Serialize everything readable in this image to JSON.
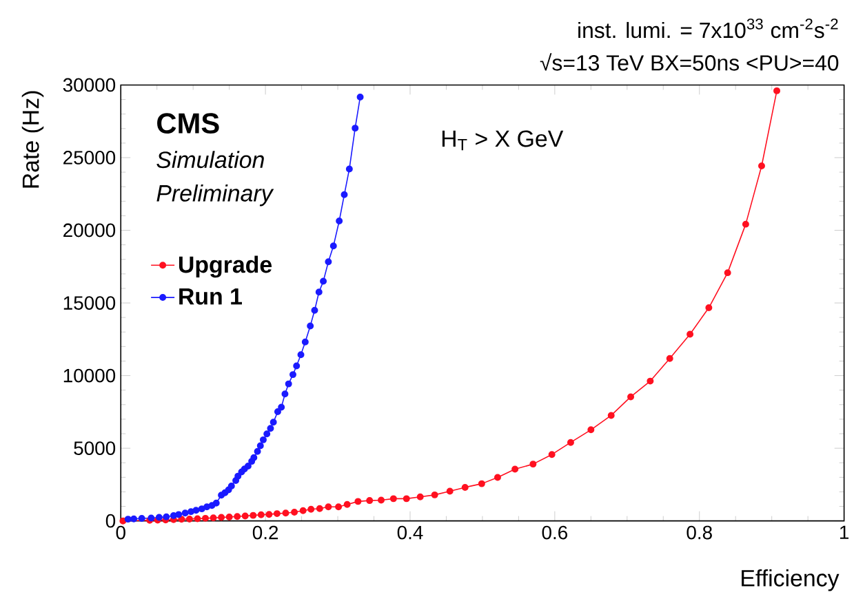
{
  "chart_data": {
    "type": "line",
    "title": "inst. lumi. = 7x10$^{33}$ cm$^{-2}$s$^{-2}$",
    "subtitle": "√s=13 TeV  BX=50ns  <PU>=40",
    "xlabel": "Efficiency",
    "ylabel": "Rate (Hz)",
    "annotations": [
      "CMS",
      "Simulation",
      "Preliminary",
      "H$_{T}$ > X GeV"
    ],
    "xlim": [
      0,
      1
    ],
    "ylim": [
      0,
      30000
    ],
    "xticks": [
      0,
      0.2,
      0.4,
      0.6,
      0.8,
      1
    ],
    "yticks": [
      0,
      5000,
      10000,
      15000,
      20000,
      25000,
      30000
    ],
    "grid": false,
    "legend": "left",
    "marker": "circle",
    "line_style": "solid",
    "series": [
      {
        "name": "Upgrade",
        "color": "#ff1020",
        "x": [
          0.003,
          0.01,
          0.02,
          0.03,
          0.04,
          0.051,
          0.062,
          0.073,
          0.084,
          0.095,
          0.106,
          0.117,
          0.128,
          0.139,
          0.15,
          0.161,
          0.172,
          0.183,
          0.194,
          0.205,
          0.216,
          0.228,
          0.24,
          0.252,
          0.263,
          0.275,
          0.287,
          0.301,
          0.313,
          0.328,
          0.344,
          0.36,
          0.377,
          0.395,
          0.414,
          0.434,
          0.455,
          0.476,
          0.499,
          0.521,
          0.545,
          0.57,
          0.596,
          0.622,
          0.65,
          0.678,
          0.705,
          0.732,
          0.759,
          0.787,
          0.813,
          0.839,
          0.864,
          0.886,
          0.907
        ],
        "values": [
          0,
          null,
          null,
          null,
          40,
          50,
          70,
          90,
          110,
          130,
          150,
          180,
          210,
          240,
          270,
          300,
          340,
          380,
          420,
          450,
          500,
          540,
          600,
          710,
          800,
          850,
          970,
          970,
          1130,
          1340,
          1400,
          1430,
          1530,
          1530,
          1650,
          1790,
          2040,
          2310,
          2560,
          2990,
          3560,
          3910,
          4570,
          5400,
          6270,
          7260,
          8540,
          9620,
          11180,
          12850,
          14670,
          17080,
          20420,
          24430,
          29600
        ]
      },
      {
        "name": "Run 1",
        "color": "#1a1aff",
        "x": [
          0.01,
          0.018,
          0.029,
          0.042,
          0.053,
          0.063,
          0.073,
          0.08,
          0.089,
          0.097,
          0.104,
          0.112,
          0.119,
          0.126,
          0.132,
          0.139,
          0.144,
          0.149,
          0.153,
          0.159,
          0.162,
          0.167,
          0.171,
          0.176,
          0.181,
          0.184,
          0.189,
          0.193,
          0.197,
          0.202,
          0.207,
          0.211,
          0.217,
          0.222,
          0.227,
          0.232,
          0.238,
          0.243,
          0.249,
          0.255,
          0.262,
          0.268,
          0.274,
          0.28,
          0.287,
          0.294,
          0.302,
          0.309,
          0.316,
          0.324,
          0.331
        ],
        "values": [
          120,
          140,
          170,
          200,
          240,
          280,
          360,
          440,
          540,
          640,
          730,
          830,
          970,
          1060,
          1230,
          1770,
          1940,
          2140,
          2400,
          2780,
          3080,
          3370,
          3570,
          3770,
          4100,
          4350,
          4780,
          5170,
          5580,
          5990,
          6370,
          6790,
          7520,
          7820,
          8740,
          9430,
          10070,
          10670,
          11440,
          12310,
          13420,
          14490,
          15750,
          16490,
          17830,
          18920,
          20640,
          22450,
          24220,
          27030,
          29170
        ]
      }
    ]
  }
}
